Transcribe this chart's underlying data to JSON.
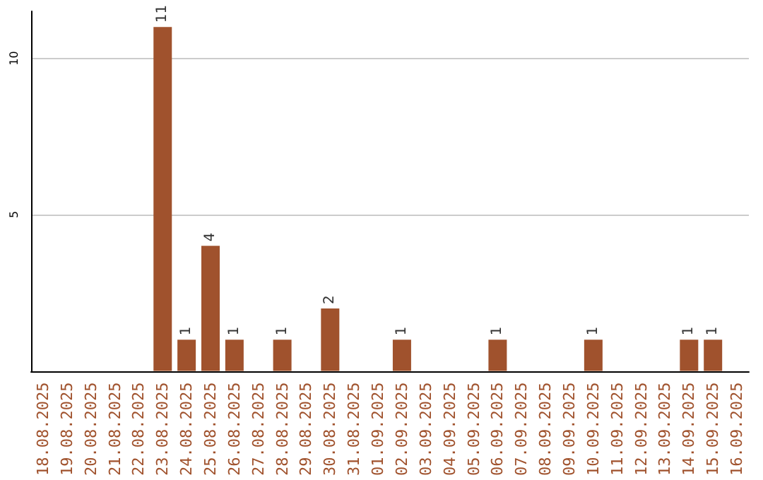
{
  "chart_data": {
    "type": "bar",
    "categories": [
      "18.08.2025",
      "19.08.2025",
      "20.08.2025",
      "21.08.2025",
      "22.08.2025",
      "23.08.2025",
      "24.08.2025",
      "25.08.2025",
      "26.08.2025",
      "27.08.2025",
      "28.08.2025",
      "29.08.2025",
      "30.08.2025",
      "31.08.2025",
      "01.09.2025",
      "02.09.2025",
      "03.09.2025",
      "04.09.2025",
      "05.09.2025",
      "06.09.2025",
      "07.09.2025",
      "08.09.2025",
      "09.09.2025",
      "10.09.2025",
      "11.09.2025",
      "12.09.2025",
      "13.09.2025",
      "14.09.2025",
      "15.09.2025",
      "16.09.2025"
    ],
    "values": [
      null,
      null,
      null,
      null,
      null,
      11,
      1,
      4,
      1,
      null,
      1,
      null,
      2,
      null,
      null,
      1,
      null,
      null,
      null,
      1,
      null,
      null,
      null,
      1,
      null,
      null,
      null,
      1,
      1,
      null
    ],
    "color": "#a0522d",
    "ylim": [
      0,
      11.5
    ],
    "yticks": [
      5,
      10
    ],
    "grid": "y",
    "data_labels": true
  }
}
